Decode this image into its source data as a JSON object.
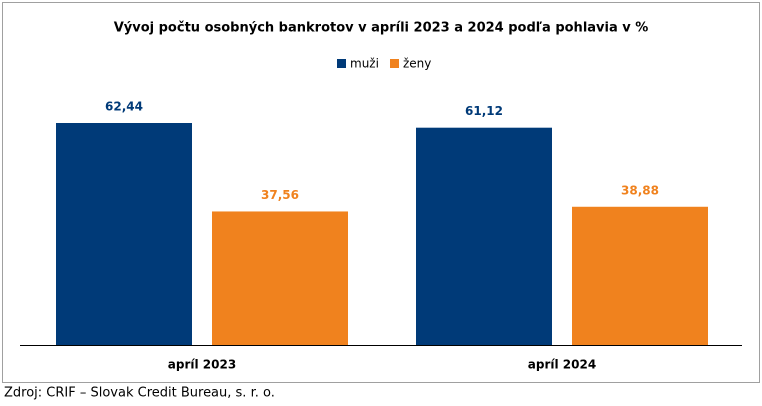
{
  "chart_data": {
    "type": "bar",
    "title": "Vývoj počtu osobných bankrotov v apríli 2023 a 2024 podľa pohlavia v %",
    "categories": [
      "apríl 2023",
      "apríl 2024"
    ],
    "series": [
      {
        "name": "muži",
        "color": "#003a78",
        "values": [
          62.44,
          61.12
        ],
        "value_labels": [
          "62,44",
          "61,12"
        ]
      },
      {
        "name": "ženy",
        "color": "#f0821e",
        "values": [
          37.56,
          38.88
        ],
        "value_labels": [
          "37,56",
          "38,88"
        ]
      }
    ],
    "legend": "top",
    "source": "Zdroj: CRIF – Slovak Credit Bureau, s. r. o."
  }
}
